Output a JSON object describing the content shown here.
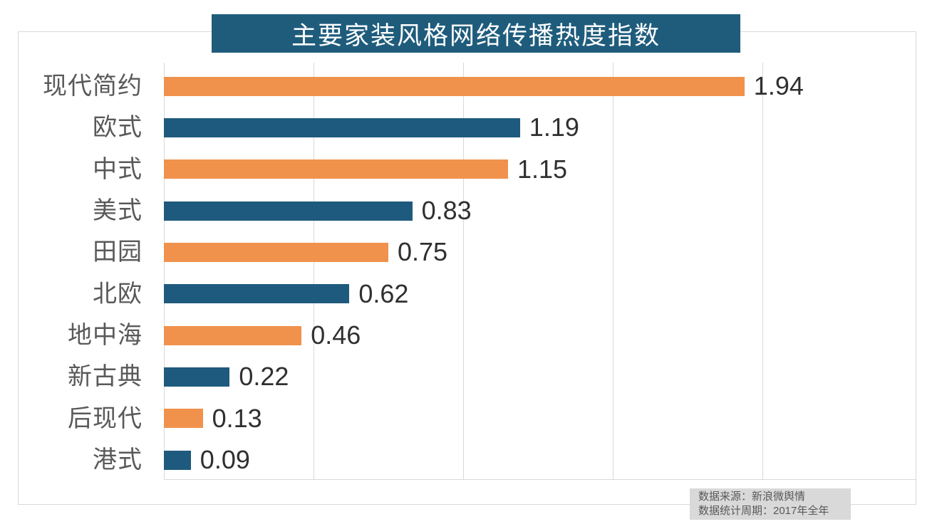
{
  "title": "主要家装风格网络传播热度指数",
  "footer": {
    "source": "数据来源：新浪微舆情",
    "period": "数据统计周期：2017年全年"
  },
  "colors": {
    "banner_bg": "#1f5c7c",
    "bar_orange": "#f0924c",
    "bar_blue": "#1e5a7d",
    "category_label": "#595959",
    "value_label": "#303030",
    "grid_line": "#d9d9d9",
    "border": "#d9d9d9",
    "footer_bg": "#d9d9d9",
    "footer_text": "#595959"
  },
  "chart_data": {
    "type": "bar",
    "orientation": "horizontal",
    "title": "主要家装风格网络传播热度指数",
    "categories": [
      "现代简约",
      "欧式",
      "中式",
      "美式",
      "田园",
      "北欧",
      "地中海",
      "新古典",
      "后现代",
      "港式"
    ],
    "values": [
      1.94,
      1.19,
      1.15,
      0.83,
      0.75,
      0.62,
      0.46,
      0.22,
      0.13,
      0.09
    ],
    "bar_colors_alternating": [
      "#f0924c",
      "#1e5a7d"
    ],
    "value_label_format": "2-decimals",
    "value_label_position": "right-of-bar-end",
    "xlim": [
      0,
      2.5
    ],
    "gridline_interval": 0.5,
    "grid": "vertical-only",
    "legend": "none",
    "source_note": "数据来源：新浪微舆情",
    "period_note": "数据统计周期：2017年全年"
  }
}
